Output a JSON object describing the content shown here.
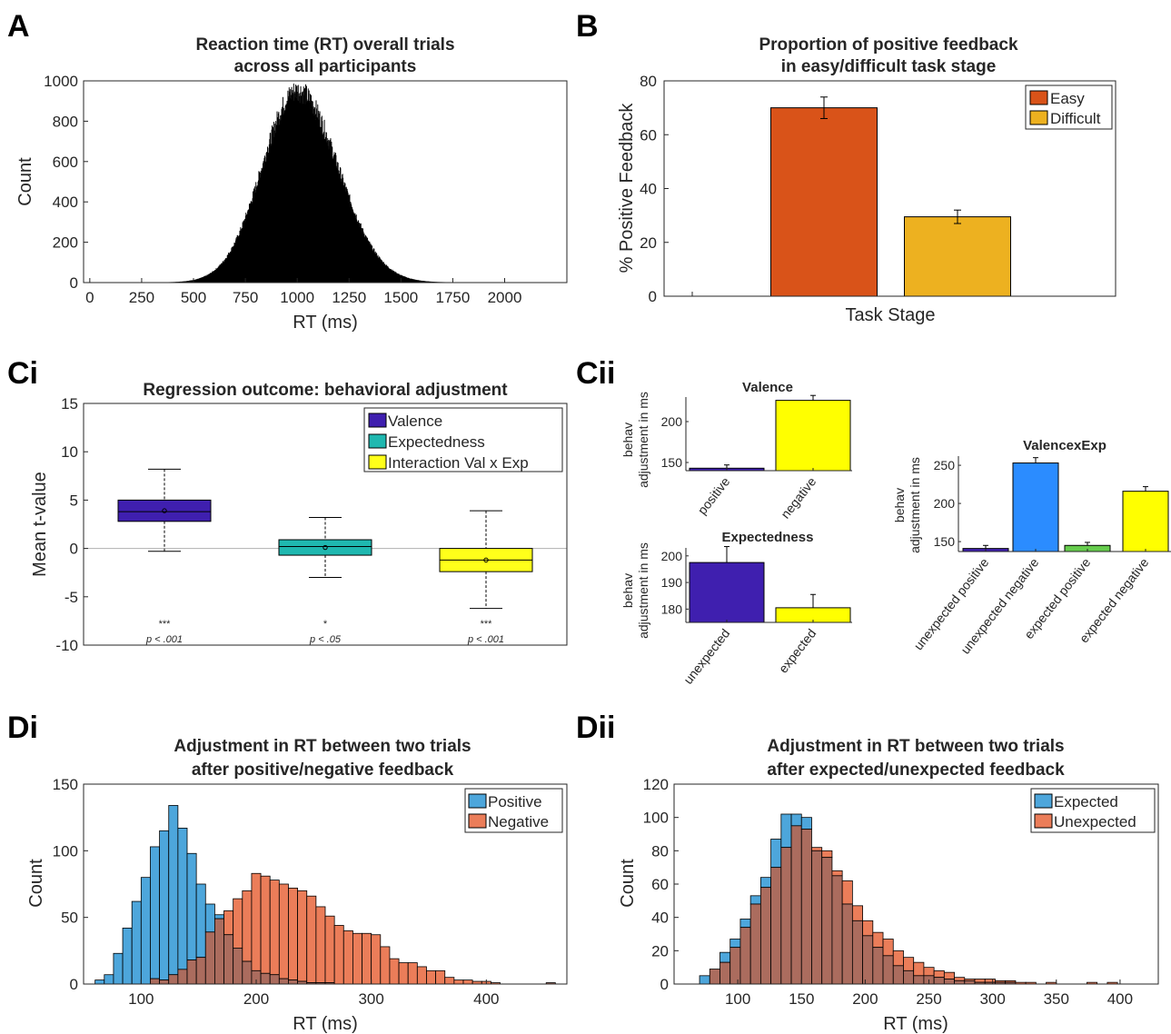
{
  "chart_data": [
    {
      "panel": "A",
      "type": "histogram",
      "title": [
        "Reaction time (RT) overall trials",
        "across all participants"
      ],
      "xlabel": "RT (ms)",
      "ylabel": "Count",
      "xlim": [
        -30,
        2300
      ],
      "ylim": [
        0,
        1000
      ],
      "xticks": [
        0,
        250,
        500,
        750,
        1000,
        1250,
        1500,
        1750,
        2000
      ],
      "yticks": [
        0,
        200,
        400,
        600,
        800,
        1000
      ],
      "distribution": {
        "peak_x": 1000,
        "peak_count": 950,
        "sigma_left": 170,
        "sigma_right": 195,
        "min_x": 200,
        "max_x": 2100
      },
      "color": "#000000"
    },
    {
      "panel": "B",
      "type": "bar",
      "title": [
        "Proportion of positive feedback",
        "in easy/difficult task stage"
      ],
      "xlabel": "Task Stage",
      "ylabel": "% Positive Feedback",
      "ylim": [
        0,
        80
      ],
      "yticks": [
        0,
        20,
        40,
        60,
        80
      ],
      "series": [
        {
          "name": "Easy",
          "value": 70,
          "error": 4,
          "color": "#D95319"
        },
        {
          "name": "Difficult",
          "value": 29.5,
          "error": 2.5,
          "color": "#EDB120"
        }
      ],
      "legend": "top-right"
    },
    {
      "panel": "Ci",
      "type": "box",
      "title": [
        "Regression outcome: behavioral adjustment"
      ],
      "xlabel": "",
      "ylabel": "Mean t-value",
      "ylim": [
        -10,
        15
      ],
      "yticks": [
        -10,
        -5,
        0,
        5,
        10,
        15
      ],
      "boxes": [
        {
          "name": "Valence",
          "q1": 2.8,
          "median": 3.8,
          "q3": 5.0,
          "mean": 3.9,
          "whisker_low": -0.3,
          "whisker_high": 8.2,
          "color": "#3F1FAF",
          "stars": "***",
          "p": "p < .001"
        },
        {
          "name": "Expectedness",
          "q1": -0.7,
          "median": 0.2,
          "q3": 0.9,
          "mean": 0.1,
          "whisker_low": -3.0,
          "whisker_high": 3.2,
          "color": "#1FB8B0",
          "stars": "*",
          "p": "p < .05"
        },
        {
          "name": "Interaction Val x Exp",
          "q1": -2.4,
          "median": -1.2,
          "q3": 0.0,
          "mean": -1.2,
          "whisker_low": -6.2,
          "whisker_high": 3.9,
          "color": "#FFFF1A",
          "stars": "***",
          "p": "p < .001"
        }
      ],
      "legend": "top-right"
    },
    {
      "panel": "Cii",
      "type": "bar",
      "title": [
        "Valence"
      ],
      "ylabel": [
        "behav",
        "adjustment in ms"
      ],
      "ylim": [
        140,
        230
      ],
      "yticks": [
        150,
        200
      ],
      "categories": [
        "positive",
        "negative"
      ],
      "values": [
        143,
        226
      ],
      "errors": [
        4,
        6
      ],
      "colors": [
        "#3F1FAF",
        "#FFFF00"
      ]
    },
    {
      "panel": "Cii",
      "type": "bar",
      "title": [
        "Expectedness"
      ],
      "ylabel": [
        "behav",
        "adjustment in ms"
      ],
      "ylim": [
        175,
        203
      ],
      "yticks": [
        180,
        190,
        200
      ],
      "categories": [
        "unexpected",
        "expected"
      ],
      "values": [
        197.5,
        180.5
      ],
      "errors": [
        6,
        5
      ],
      "colors": [
        "#3F1FAF",
        "#FFFF00"
      ]
    },
    {
      "panel": "Cii",
      "type": "bar",
      "title": [
        "ValencexExp"
      ],
      "ylabel": [
        "behav",
        "adjustment in ms"
      ],
      "ylim": [
        137,
        262
      ],
      "yticks": [
        150,
        200,
        250
      ],
      "categories": [
        "unexpected positive",
        "unexpected negative",
        "expected positive",
        "expected negative"
      ],
      "values": [
        141,
        253,
        145,
        216
      ],
      "errors": [
        4,
        7,
        4,
        6
      ],
      "colors": [
        "#3F1FAF",
        "#2B8CFF",
        "#66CC4D",
        "#FFFF00"
      ]
    },
    {
      "panel": "Di",
      "type": "histogram",
      "title": [
        "Adjustment in RT between two trials",
        "after positive/negative feedback"
      ],
      "xlabel": "RT (ms)",
      "ylabel": "Count",
      "xlim": [
        50,
        470
      ],
      "ylim": [
        0,
        150
      ],
      "xticks": [
        100,
        200,
        300,
        400
      ],
      "yticks": [
        0,
        50,
        100,
        150
      ],
      "bin_start": 60,
      "bin_width": 8,
      "series": [
        {
          "name": "Positive",
          "color": "#4DA6DB",
          "counts": [
            3,
            7,
            23,
            42,
            62,
            80,
            103,
            115,
            134,
            117,
            98,
            75,
            60,
            52,
            37,
            27,
            17,
            10,
            8,
            7,
            4,
            3,
            2,
            1,
            1,
            1,
            0,
            0,
            0,
            0,
            0,
            0,
            0,
            0,
            0,
            0,
            0,
            0,
            0,
            0,
            0,
            0,
            0,
            0,
            0,
            0,
            0,
            0,
            0,
            1
          ]
        },
        {
          "name": "Negative",
          "color": "#EB7D59",
          "counts": [
            0,
            0,
            0,
            0,
            0,
            0,
            4,
            3,
            7,
            11,
            18,
            20,
            39,
            49,
            55,
            64,
            70,
            83,
            81,
            78,
            75,
            72,
            70,
            66,
            58,
            51,
            44,
            40,
            38,
            38,
            37,
            28,
            19,
            16,
            16,
            13,
            10,
            10,
            5,
            3,
            3,
            2,
            2,
            1,
            0,
            0,
            0,
            0,
            0,
            1
          ]
        }
      ],
      "legend": "top-right"
    },
    {
      "panel": "Dii",
      "type": "histogram",
      "title": [
        "Adjustment in RT between two trials",
        "after expected/unexpected feedback"
      ],
      "xlabel": "RT (ms)",
      "ylabel": "Count",
      "xlim": [
        50,
        430
      ],
      "ylim": [
        0,
        120
      ],
      "xticks": [
        100,
        150,
        200,
        250,
        300,
        350,
        400
      ],
      "yticks": [
        0,
        20,
        40,
        60,
        80,
        100,
        120
      ],
      "bin_start": 70,
      "bin_width": 8,
      "series": [
        {
          "name": "Expected",
          "color": "#4DA6DB",
          "counts": [
            5,
            9,
            19,
            27,
            39,
            53,
            64,
            87,
            102,
            102,
            100,
            80,
            76,
            65,
            48,
            38,
            29,
            22,
            17,
            11,
            8,
            5,
            5,
            4,
            3,
            2,
            2,
            1,
            1,
            1,
            1,
            0,
            0,
            0,
            0,
            0,
            0,
            0,
            0,
            0,
            0,
            0,
            0,
            0
          ]
        },
        {
          "name": "Unexpected",
          "color": "#EB7D59",
          "counts": [
            0,
            9,
            13,
            22,
            34,
            48,
            58,
            70,
            82,
            95,
            93,
            82,
            80,
            68,
            62,
            47,
            38,
            31,
            27,
            20,
            16,
            13,
            10,
            8,
            7,
            4,
            3,
            3,
            3,
            2,
            2,
            1,
            1,
            0,
            1,
            0,
            0,
            0,
            1,
            0,
            1,
            0,
            0,
            0
          ]
        }
      ],
      "legend": "top-right"
    }
  ],
  "panel_labels": [
    "A",
    "B",
    "Ci",
    "Cii",
    "Di",
    "Dii"
  ]
}
